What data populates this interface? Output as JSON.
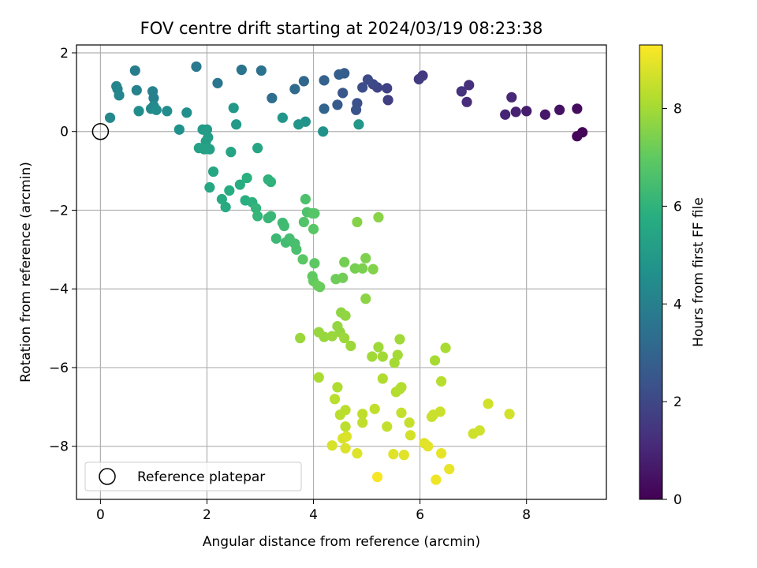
{
  "chart_data": {
    "type": "scatter",
    "title": "FOV centre drift starting at 2024/03/19 08:23:38",
    "xlabel": "Angular distance from reference (arcmin)",
    "ylabel": "Rotation from reference (arcmin)",
    "xlim": [
      -0.45,
      9.5
    ],
    "ylim": [
      -9.35,
      2.2
    ],
    "x_ticks": [
      0,
      2,
      4,
      6,
      8
    ],
    "y_ticks": [
      2,
      0,
      -2,
      -4,
      -6,
      -8
    ],
    "x_tick_labels": [
      "0",
      "2",
      "4",
      "6",
      "8"
    ],
    "y_tick_labels": [
      "2",
      "0",
      "−2",
      "−4",
      "−6",
      "−8"
    ],
    "grid": true,
    "colormap": "viridis",
    "colorbar": {
      "label": "Hours from first FF file",
      "range": [
        0,
        9.3
      ],
      "ticks": [
        0,
        2,
        4,
        6,
        8
      ],
      "tick_labels": [
        "0",
        "2",
        "4",
        "6",
        "8"
      ]
    },
    "legend": {
      "placement": "lower-left",
      "label": "Reference platepar"
    },
    "reference_point": {
      "x": 0,
      "y": 0
    },
    "points": [
      [
        9.05,
        -0.02,
        0.1
      ],
      [
        8.95,
        -0.12,
        0.15
      ],
      [
        8.95,
        0.58,
        0.3
      ],
      [
        8.62,
        0.55,
        0.45
      ],
      [
        8.35,
        0.43,
        0.6
      ],
      [
        8.0,
        0.52,
        0.75
      ],
      [
        7.8,
        0.5,
        0.85
      ],
      [
        7.6,
        0.43,
        0.95
      ],
      [
        7.72,
        0.87,
        1.05
      ],
      [
        6.88,
        0.75,
        1.15
      ],
      [
        6.92,
        1.18,
        1.25
      ],
      [
        6.78,
        1.02,
        1.35
      ],
      [
        6.05,
        1.42,
        1.5
      ],
      [
        5.98,
        1.33,
        1.6
      ],
      [
        5.4,
        0.8,
        1.7
      ],
      [
        5.38,
        1.1,
        1.8
      ],
      [
        5.2,
        1.12,
        1.9
      ],
      [
        5.12,
        1.2,
        2.0
      ],
      [
        5.02,
        1.32,
        2.1
      ],
      [
        4.92,
        1.12,
        2.2
      ],
      [
        4.82,
        0.72,
        2.3
      ],
      [
        4.8,
        0.55,
        2.4
      ],
      [
        4.55,
        0.98,
        2.5
      ],
      [
        4.45,
        0.68,
        2.6
      ],
      [
        4.58,
        1.48,
        2.7
      ],
      [
        4.48,
        1.45,
        2.8
      ],
      [
        4.2,
        1.3,
        2.9
      ],
      [
        4.2,
        0.58,
        3.0
      ],
      [
        3.82,
        1.28,
        3.1
      ],
      [
        3.65,
        1.08,
        3.2
      ],
      [
        3.22,
        0.85,
        3.35
      ],
      [
        3.02,
        1.55,
        3.45
      ],
      [
        2.65,
        1.57,
        3.55
      ],
      [
        2.2,
        1.23,
        3.65
      ],
      [
        1.8,
        1.65,
        3.75
      ],
      [
        0.65,
        1.55,
        3.9
      ],
      [
        1.0,
        0.85,
        4.0
      ],
      [
        0.98,
        1.02,
        4.05
      ],
      [
        0.68,
        1.05,
        4.1
      ],
      [
        0.3,
        1.15,
        4.15
      ],
      [
        0.32,
        1.08,
        4.2
      ],
      [
        0.35,
        0.92,
        4.25
      ],
      [
        0.18,
        0.35,
        4.3
      ],
      [
        1.0,
        0.65,
        4.35
      ],
      [
        0.95,
        0.58,
        4.4
      ],
      [
        1.05,
        0.55,
        4.45
      ],
      [
        1.25,
        0.52,
        4.5
      ],
      [
        0.72,
        0.52,
        4.55
      ],
      [
        1.62,
        0.48,
        4.6
      ],
      [
        1.48,
        0.05,
        4.65
      ],
      [
        4.18,
        0.0,
        4.7
      ],
      [
        3.85,
        0.25,
        4.75
      ],
      [
        3.72,
        0.18,
        4.8
      ],
      [
        3.42,
        0.35,
        4.85
      ],
      [
        4.85,
        0.18,
        4.9
      ],
      [
        2.5,
        0.6,
        4.95
      ],
      [
        2.55,
        0.18,
        5.0
      ],
      [
        1.92,
        0.05,
        5.05
      ],
      [
        2.0,
        0.05,
        5.1
      ],
      [
        2.02,
        -0.15,
        5.15
      ],
      [
        1.98,
        -0.25,
        5.2
      ],
      [
        2.05,
        -0.45,
        5.25
      ],
      [
        1.95,
        -0.45,
        5.3
      ],
      [
        1.85,
        -0.42,
        5.35
      ],
      [
        2.45,
        -0.52,
        5.4
      ],
      [
        2.95,
        -0.42,
        5.45
      ],
      [
        2.12,
        -1.02,
        5.5
      ],
      [
        2.05,
        -1.42,
        5.55
      ],
      [
        2.28,
        -1.72,
        5.6
      ],
      [
        2.35,
        -1.92,
        5.65
      ],
      [
        2.42,
        -1.5,
        5.7
      ],
      [
        2.62,
        -1.35,
        5.75
      ],
      [
        2.72,
        -1.75,
        5.8
      ],
      [
        2.75,
        -1.18,
        5.85
      ],
      [
        2.85,
        -1.8,
        5.9
      ],
      [
        3.15,
        -1.22,
        5.95
      ],
      [
        3.2,
        -1.28,
        6.0
      ],
      [
        2.92,
        -1.95,
        6.05
      ],
      [
        2.95,
        -2.15,
        6.1
      ],
      [
        3.15,
        -2.2,
        6.15
      ],
      [
        3.2,
        -2.15,
        6.2
      ],
      [
        3.3,
        -2.72,
        6.25
      ],
      [
        3.42,
        -2.32,
        6.3
      ],
      [
        3.45,
        -2.4,
        6.35
      ],
      [
        3.48,
        -2.82,
        6.4
      ],
      [
        3.55,
        -2.72,
        6.45
      ],
      [
        3.65,
        -2.85,
        6.5
      ],
      [
        3.68,
        -3.0,
        6.55
      ],
      [
        3.85,
        -1.72,
        6.6
      ],
      [
        3.88,
        -2.05,
        6.65
      ],
      [
        3.82,
        -2.3,
        6.7
      ],
      [
        3.98,
        -2.08,
        6.75
      ],
      [
        4.02,
        -2.08,
        6.8
      ],
      [
        4.0,
        -2.48,
        6.85
      ],
      [
        3.8,
        -3.25,
        6.9
      ],
      [
        4.02,
        -3.35,
        6.95
      ],
      [
        3.98,
        -3.68,
        7.0
      ],
      [
        4.0,
        -3.8,
        7.05
      ],
      [
        4.12,
        -3.95,
        7.1
      ],
      [
        4.08,
        -3.92,
        7.15
      ],
      [
        4.42,
        -3.75,
        7.2
      ],
      [
        4.55,
        -3.72,
        7.25
      ],
      [
        4.58,
        -3.32,
        7.3
      ],
      [
        4.78,
        -3.48,
        7.35
      ],
      [
        4.92,
        -3.48,
        7.4
      ],
      [
        4.98,
        -3.22,
        7.45
      ],
      [
        5.12,
        -3.5,
        7.5
      ],
      [
        4.82,
        -2.3,
        7.55
      ],
      [
        5.22,
        -2.18,
        7.6
      ],
      [
        4.98,
        -4.25,
        7.65
      ],
      [
        4.52,
        -4.6,
        7.7
      ],
      [
        4.6,
        -4.68,
        7.72
      ],
      [
        4.45,
        -4.95,
        7.75
      ],
      [
        4.5,
        -5.1,
        7.78
      ],
      [
        4.1,
        -5.1,
        7.8
      ],
      [
        4.2,
        -5.22,
        7.82
      ],
      [
        3.75,
        -5.25,
        7.84
      ],
      [
        4.35,
        -5.2,
        7.86
      ],
      [
        4.58,
        -5.25,
        7.88
      ],
      [
        4.7,
        -5.45,
        7.9
      ],
      [
        5.22,
        -5.48,
        7.92
      ],
      [
        5.62,
        -5.28,
        7.94
      ],
      [
        5.1,
        -5.72,
        7.96
      ],
      [
        5.3,
        -5.72,
        7.98
      ],
      [
        5.58,
        -5.68,
        8.0
      ],
      [
        5.52,
        -5.88,
        8.02
      ],
      [
        6.28,
        -5.82,
        8.05
      ],
      [
        6.48,
        -5.5,
        8.08
      ],
      [
        4.1,
        -6.25,
        8.1
      ],
      [
        4.45,
        -6.5,
        8.15
      ],
      [
        5.3,
        -6.28,
        8.18
      ],
      [
        5.62,
        -6.55,
        8.2
      ],
      [
        5.65,
        -6.5,
        8.22
      ],
      [
        5.55,
        -6.62,
        8.25
      ],
      [
        6.4,
        -6.35,
        8.28
      ],
      [
        4.4,
        -6.8,
        8.3
      ],
      [
        4.5,
        -7.2,
        8.32
      ],
      [
        4.6,
        -7.08,
        8.34
      ],
      [
        4.6,
        -7.5,
        8.36
      ],
      [
        4.92,
        -7.18,
        8.38
      ],
      [
        4.92,
        -7.4,
        8.4
      ],
      [
        5.15,
        -7.05,
        8.42
      ],
      [
        5.38,
        -7.5,
        8.45
      ],
      [
        5.65,
        -7.15,
        8.48
      ],
      [
        5.8,
        -7.4,
        8.5
      ],
      [
        6.22,
        -7.25,
        8.52
      ],
      [
        6.25,
        -7.2,
        8.55
      ],
      [
        6.38,
        -7.12,
        8.58
      ],
      [
        7.0,
        -7.68,
        8.6
      ],
      [
        7.12,
        -7.6,
        8.62
      ],
      [
        7.28,
        -6.92,
        8.65
      ],
      [
        7.68,
        -7.18,
        8.68
      ],
      [
        5.82,
        -7.72,
        8.7
      ],
      [
        4.35,
        -7.98,
        8.75
      ],
      [
        4.55,
        -7.8,
        8.78
      ],
      [
        4.62,
        -7.75,
        8.8
      ],
      [
        4.6,
        -8.05,
        8.82
      ],
      [
        4.82,
        -8.18,
        8.84
      ],
      [
        5.5,
        -8.2,
        8.86
      ],
      [
        5.7,
        -8.22,
        8.88
      ],
      [
        6.08,
        -7.92,
        8.9
      ],
      [
        6.15,
        -8.0,
        8.92
      ],
      [
        6.4,
        -8.18,
        8.95
      ],
      [
        6.55,
        -8.58,
        9.0
      ],
      [
        6.3,
        -8.85,
        9.1
      ],
      [
        5.2,
        -8.78,
        9.2
      ]
    ]
  }
}
